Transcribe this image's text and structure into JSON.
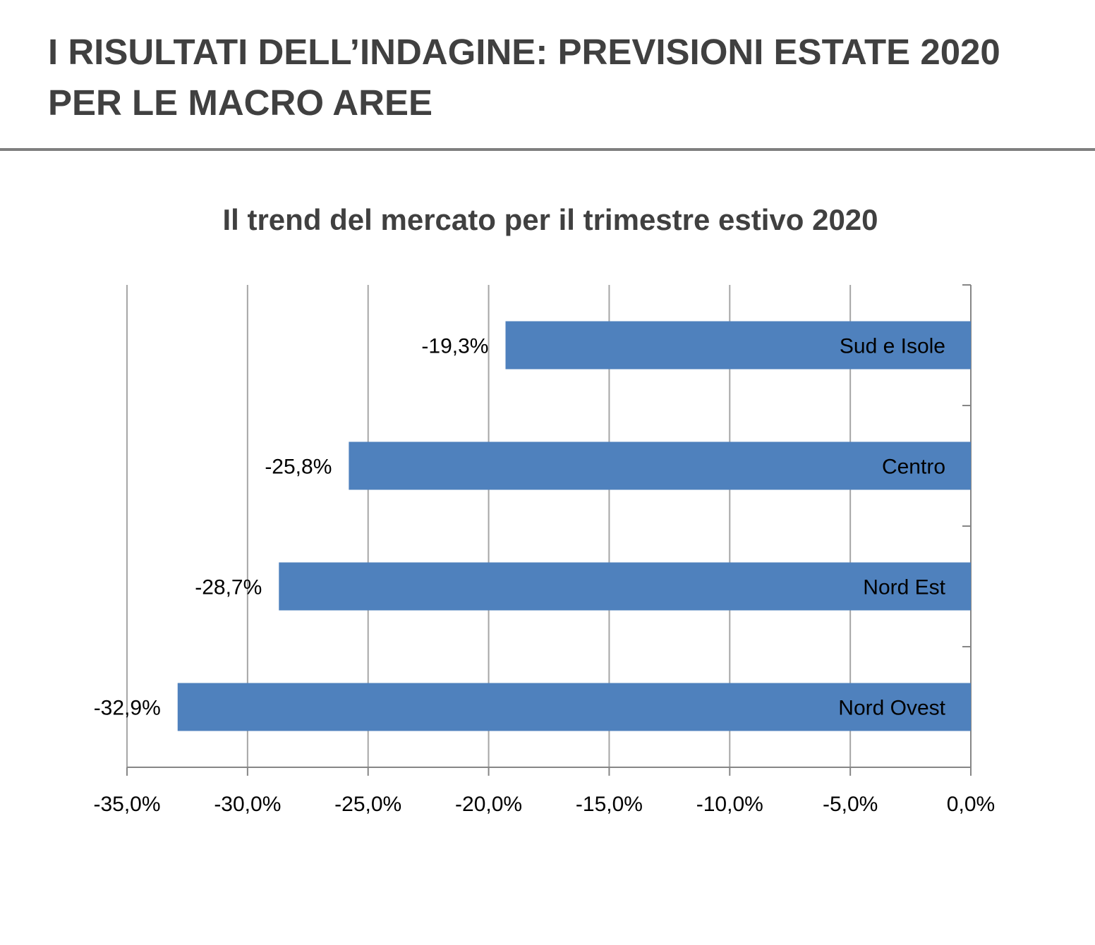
{
  "header": {
    "title": "I RISULTATI DELL’INDAGINE: PREVISIONI ESTATE 2020 PER LE MACRO AREE"
  },
  "chart_data": {
    "type": "bar",
    "orientation": "horizontal",
    "title": "Il trend del mercato per il trimestre estivo 2020",
    "categories": [
      "Sud e Isole",
      "Centro",
      "Nord Est",
      "Nord Ovest"
    ],
    "values": [
      -19.3,
      -25.8,
      -28.7,
      -32.9
    ],
    "data_labels": [
      "-19,3%",
      "-25,8%",
      "-28,7%",
      "-32,9%"
    ],
    "xlim": [
      -35,
      0
    ],
    "x_ticks": [
      -35,
      -30,
      -25,
      -20,
      -15,
      -10,
      -5,
      0
    ],
    "x_tick_labels": [
      "-35,0%",
      "-30,0%",
      "-25,0%",
      "-20,0%",
      "-15,0%",
      "-10,0%",
      "-5,0%",
      "0,0%"
    ],
    "grid": true,
    "legend": "none",
    "colors": {
      "bar": "#4f81bd",
      "gridline": "#a6a6a6",
      "axis": "#868686",
      "text": "#000000"
    }
  }
}
